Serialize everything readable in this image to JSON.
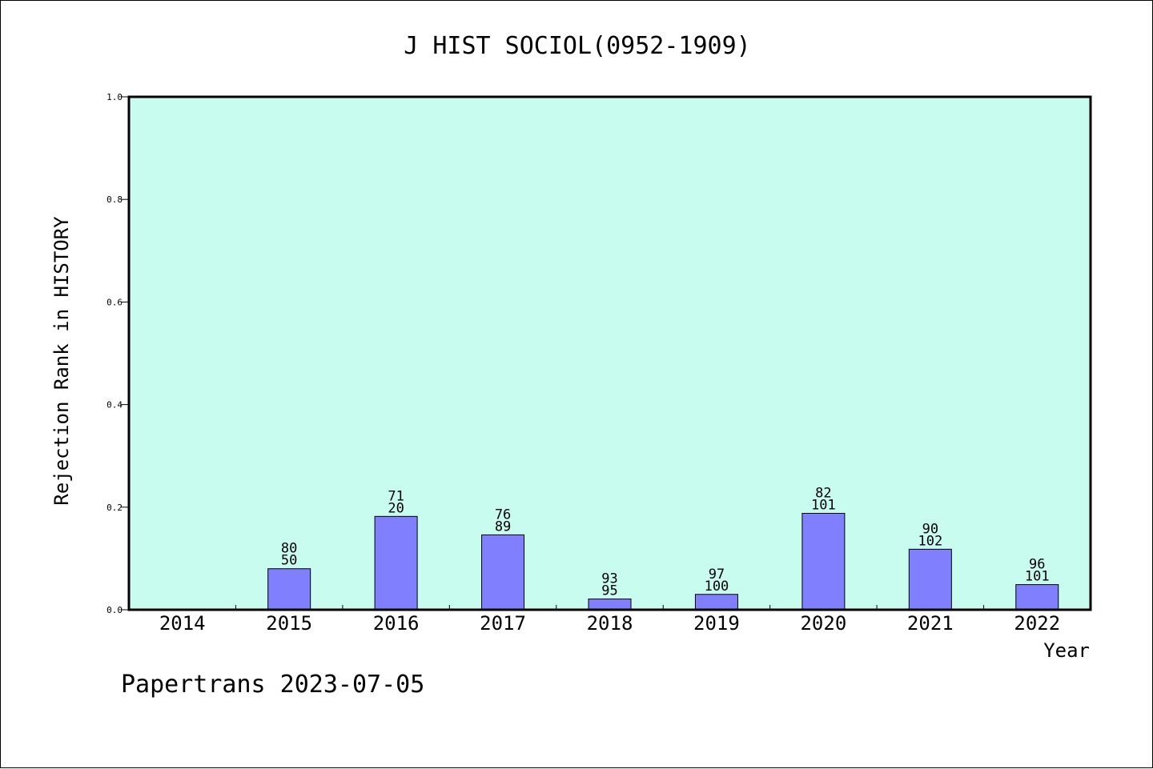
{
  "footer": {
    "text": "Papertrans 2023-07-05"
  },
  "colors": {
    "plot_background": "#c8fcee",
    "bar_fill": "#8080ff",
    "bar_stroke": "#000000",
    "frame": "#000000"
  },
  "chart_data": {
    "type": "bar",
    "title": "J HIST SOCIOL(0952-1909)",
    "xlabel": "Year",
    "ylabel": "Rejection Rank in HISTORY",
    "ylim": [
      0,
      1.0
    ],
    "yticks": [
      "0.0",
      "0.2",
      "0.4",
      "0.6",
      "0.8",
      "1.0"
    ],
    "grid": false,
    "categories": [
      "2014",
      "2015",
      "2016",
      "2017",
      "2018",
      "2019",
      "2020",
      "2021",
      "2022"
    ],
    "values": [
      0,
      0.08,
      0.182,
      0.146,
      0.021,
      0.03,
      0.188,
      0.118,
      0.049
    ],
    "label_top": [
      "",
      "80",
      "71",
      "76",
      "93",
      "97",
      "82",
      "90",
      "96"
    ],
    "label_bottom": [
      "",
      "50",
      "20",
      "89",
      "95",
      "100",
      "101",
      "102",
      "101"
    ]
  }
}
